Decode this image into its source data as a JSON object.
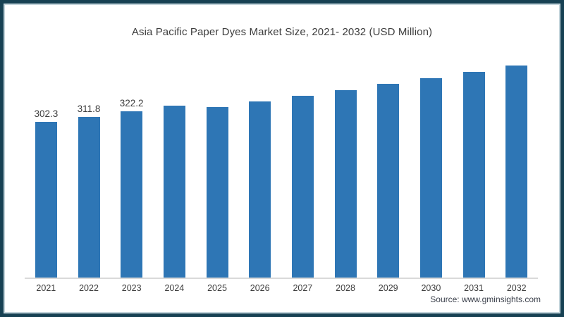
{
  "frame": {
    "border_color": "#174153",
    "inner_edge_color": "#c3d4db",
    "background": "#ffffff"
  },
  "footer": {
    "source": "Source: www.gminsights.com"
  },
  "chart_data": {
    "type": "bar",
    "title": "Asia Pacific Paper Dyes Market Size, 2021- 2032 (USD Million)",
    "xlabel": "",
    "ylabel": "",
    "categories": [
      "2021",
      "2022",
      "2023",
      "2024",
      "2025",
      "2026",
      "2027",
      "2028",
      "2029",
      "2030",
      "2031",
      "2032"
    ],
    "values": [
      302.3,
      311.8,
      322.2,
      332.5,
      329.3,
      339.4,
      350.1,
      360.9,
      372.6,
      382.4,
      394.0,
      405.6
    ],
    "data_labels": [
      "302.3",
      "311.8",
      "322.2",
      "",
      "",
      "",
      "",
      "",
      "",
      "",
      "",
      ""
    ],
    "ylim": [
      17,
      420
    ],
    "grid": false,
    "legend": "none",
    "y_axis_visible": false,
    "bar_color": "#2e76b5",
    "axis_line_color": "#d9d9d9",
    "text_color": "#3d3d3d"
  }
}
